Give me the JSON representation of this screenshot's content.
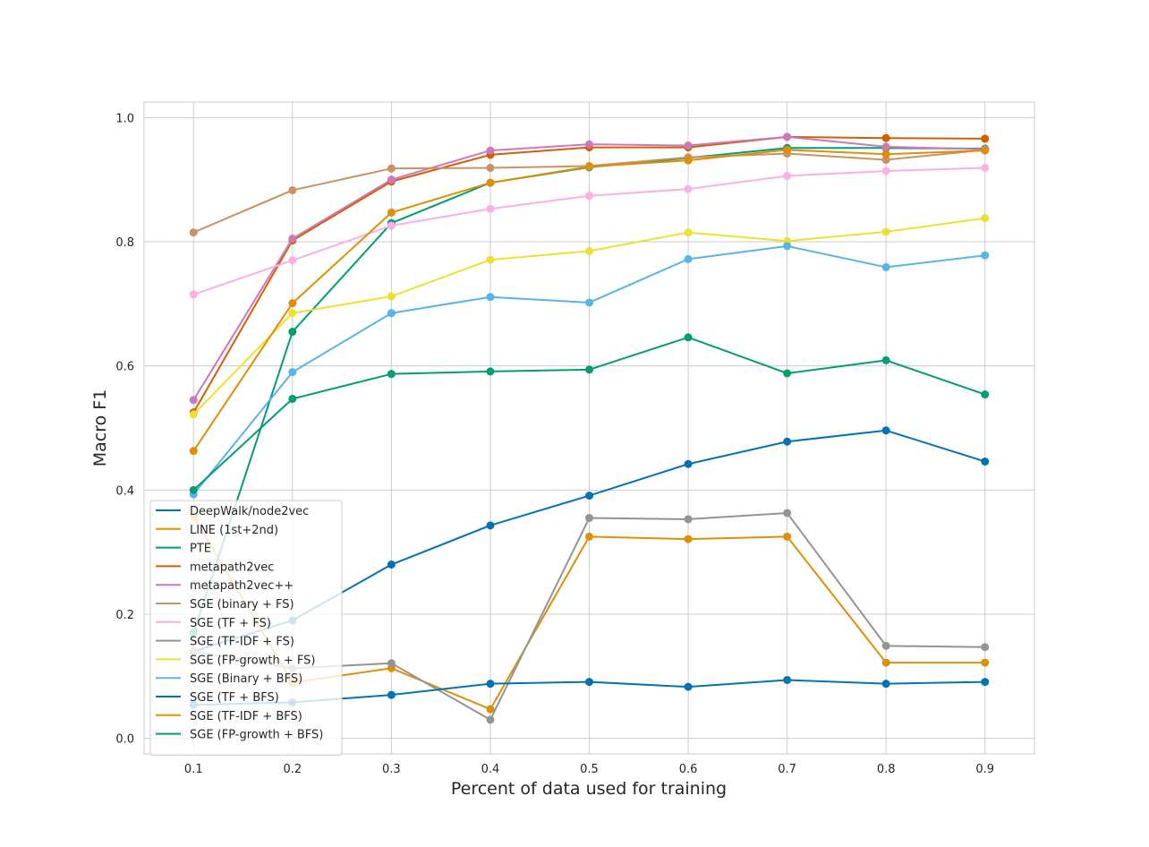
{
  "chart_data": {
    "type": "line",
    "title": "",
    "xlabel": "Percent of data used for training",
    "ylabel": "Macro F1",
    "xlim": [
      0.05,
      0.95
    ],
    "ylim": [
      -0.025,
      1.025
    ],
    "xticks": [
      "0.1",
      "0.2",
      "0.3",
      "0.4",
      "0.5",
      "0.6",
      "0.7",
      "0.8",
      "0.9"
    ],
    "yticks": [
      "0.0",
      "0.2",
      "0.4",
      "0.6",
      "0.8",
      "1.0"
    ],
    "grid": true,
    "legend_position": "lower-left",
    "x": [
      0.1,
      0.2,
      0.3,
      0.4,
      0.5,
      0.6,
      0.7,
      0.8,
      0.9
    ],
    "series": [
      {
        "name": "DeepWalk/node2vec",
        "color": "#0173b2",
        "values": [
          0.14,
          0.19,
          0.28,
          0.343,
          0.391,
          0.442,
          0.478,
          0.496,
          0.446
        ]
      },
      {
        "name": "LINE (1st+2nd)",
        "color": "#de8f05",
        "values": [
          0.358,
          0.09,
          0.113,
          0.047,
          0.325,
          0.321,
          0.325,
          0.122,
          0.122
        ]
      },
      {
        "name": "PTE",
        "color": "#029e73",
        "values": [
          0.17,
          0.655,
          0.83,
          0.895,
          0.92,
          0.935,
          0.951,
          0.951,
          0.95
        ]
      },
      {
        "name": "metapath2vec",
        "color": "#d55e00",
        "values": [
          0.525,
          0.802,
          0.897,
          0.94,
          0.952,
          0.952,
          0.969,
          0.967,
          0.966
        ]
      },
      {
        "name": "metapath2vec++",
        "color": "#cc78bc",
        "values": [
          0.545,
          0.805,
          0.9,
          0.947,
          0.957,
          0.955,
          0.969,
          0.953,
          0.949
        ]
      },
      {
        "name": "SGE (binary + FS)",
        "color": "#ca9161",
        "values": [
          0.815,
          0.883,
          0.918,
          0.919,
          0.922,
          0.936,
          0.942,
          0.932,
          0.948
        ]
      },
      {
        "name": "SGE (TF + FS)",
        "color": "#fbafe4",
        "values": [
          0.715,
          0.77,
          0.826,
          0.853,
          0.874,
          0.885,
          0.906,
          0.914,
          0.919
        ]
      },
      {
        "name": "SGE (TF-IDF + FS)",
        "color": "#949494",
        "values": [
          0.14,
          0.113,
          0.121,
          0.03,
          0.355,
          0.353,
          0.363,
          0.149,
          0.147
        ]
      },
      {
        "name": "SGE (FP-growth + FS)",
        "color": "#ece133",
        "values": [
          0.522,
          0.685,
          0.712,
          0.771,
          0.785,
          0.815,
          0.801,
          0.816,
          0.838
        ]
      },
      {
        "name": "SGE (Binary + BFS)",
        "color": "#56b4e9",
        "values": [
          0.393,
          0.59,
          0.685,
          0.711,
          0.702,
          0.772,
          0.793,
          0.759,
          0.778
        ]
      },
      {
        "name": "SGE (TF + BFS)",
        "color": "#0173b2",
        "values": [
          0.054,
          0.058,
          0.07,
          0.088,
          0.091,
          0.083,
          0.094,
          0.088,
          0.091
        ]
      },
      {
        "name": "SGE (TF-IDF + BFS)",
        "color": "#de8f05",
        "values": [
          0.463,
          0.701,
          0.847,
          0.895,
          0.921,
          0.931,
          0.948,
          0.941,
          0.947
        ]
      },
      {
        "name": "SGE (FP-growth + BFS)",
        "color": "#029e73",
        "values": [
          0.4,
          0.547,
          0.587,
          0.591,
          0.594,
          0.646,
          0.588,
          0.609,
          0.554
        ]
      }
    ]
  }
}
